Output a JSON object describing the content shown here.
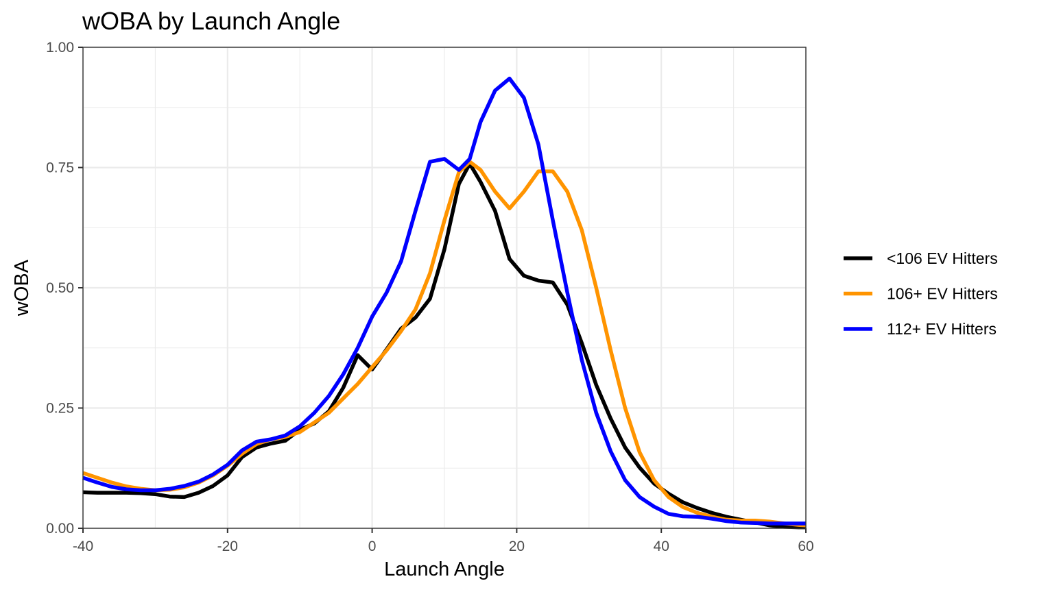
{
  "chart_data": {
    "type": "line",
    "title": "wOBA by Launch Angle",
    "xlabel": "Launch Angle",
    "ylabel": "wOBA",
    "xlim": [
      -40,
      60
    ],
    "ylim": [
      0,
      1
    ],
    "x_ticks": [
      -40,
      -20,
      0,
      20,
      40,
      60
    ],
    "x_tick_labels": [
      "-40",
      "-20",
      "0",
      "20",
      "40",
      "60"
    ],
    "y_ticks": [
      0,
      0.25,
      0.5,
      0.75,
      1
    ],
    "y_tick_labels": [
      "0.00",
      "0.25",
      "0.50",
      "0.75",
      "1.00"
    ],
    "grid": true,
    "legend_position": "right",
    "x": [
      -40,
      -38,
      -36,
      -34,
      -32,
      -30,
      -28,
      -26,
      -24,
      -22,
      -20,
      -18,
      -16,
      -14,
      -12,
      -10,
      -8,
      -6,
      -4,
      -2,
      0,
      2,
      4,
      6,
      8,
      10,
      12,
      13.5,
      15,
      17,
      19,
      21,
      23,
      25,
      27,
      29,
      31,
      33,
      35,
      37,
      39,
      41,
      43,
      45,
      47,
      49,
      51,
      53,
      55,
      57,
      59,
      60
    ],
    "series": [
      {
        "name": "<106 EV Hitters",
        "color": "#000000",
        "values": [
          0.075,
          0.074,
          0.074,
          0.074,
          0.073,
          0.071,
          0.066,
          0.065,
          0.074,
          0.088,
          0.11,
          0.148,
          0.168,
          0.176,
          0.182,
          0.205,
          0.218,
          0.243,
          0.292,
          0.36,
          0.33,
          0.372,
          0.415,
          0.438,
          0.477,
          0.58,
          0.716,
          0.758,
          0.72,
          0.66,
          0.56,
          0.525,
          0.515,
          0.511,
          0.465,
          0.385,
          0.298,
          0.228,
          0.168,
          0.126,
          0.093,
          0.072,
          0.054,
          0.042,
          0.032,
          0.024,
          0.018,
          0.012,
          0.006,
          0.003,
          0.002,
          0.002
        ]
      },
      {
        "name": "106+ EV Hitters",
        "color": "#ff9400",
        "values": [
          0.115,
          0.105,
          0.095,
          0.087,
          0.082,
          0.079,
          0.08,
          0.085,
          0.095,
          0.11,
          0.13,
          0.155,
          0.175,
          0.185,
          0.19,
          0.2,
          0.22,
          0.24,
          0.27,
          0.3,
          0.335,
          0.37,
          0.41,
          0.455,
          0.53,
          0.64,
          0.74,
          0.762,
          0.745,
          0.7,
          0.665,
          0.7,
          0.742,
          0.742,
          0.7,
          0.62,
          0.5,
          0.37,
          0.25,
          0.158,
          0.1,
          0.065,
          0.044,
          0.032,
          0.024,
          0.018,
          0.016,
          0.016,
          0.014,
          0.01,
          0.007,
          0.006
        ]
      },
      {
        "name": "112+ EV Hitters",
        "color": "#0000ff",
        "values": [
          0.105,
          0.095,
          0.086,
          0.081,
          0.079,
          0.079,
          0.082,
          0.088,
          0.097,
          0.112,
          0.132,
          0.162,
          0.18,
          0.185,
          0.193,
          0.212,
          0.24,
          0.275,
          0.32,
          0.375,
          0.44,
          0.49,
          0.555,
          0.66,
          0.762,
          0.768,
          0.745,
          0.768,
          0.845,
          0.91,
          0.935,
          0.895,
          0.798,
          0.64,
          0.49,
          0.35,
          0.24,
          0.16,
          0.1,
          0.065,
          0.045,
          0.03,
          0.025,
          0.024,
          0.02,
          0.015,
          0.012,
          0.011,
          0.01,
          0.01,
          0.01,
          0.01
        ]
      }
    ]
  }
}
